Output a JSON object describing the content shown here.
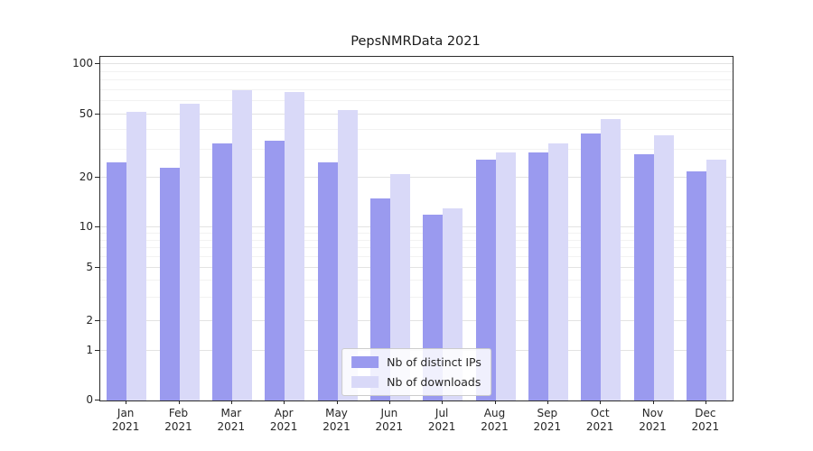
{
  "chart_data": {
    "type": "bar",
    "title": "PepsNMRData 2021",
    "categories": [
      "Jan 2021",
      "Feb 2021",
      "Mar 2021",
      "Apr 2021",
      "May 2021",
      "Jun 2021",
      "Jul 2021",
      "Aug 2021",
      "Sep 2021",
      "Oct 2021",
      "Nov 2021",
      "Dec 2021"
    ],
    "series": [
      {
        "name": "Nb of distinct IPs",
        "color": "#9a9aef",
        "values": [
          25,
          23,
          33,
          34,
          25,
          15,
          12,
          26,
          29,
          38,
          28,
          22
        ]
      },
      {
        "name": "Nb of downloads",
        "color": "#d9d9f8",
        "values": [
          52,
          58,
          70,
          68,
          53,
          21,
          13,
          29,
          33,
          47,
          37,
          26
        ]
      }
    ],
    "yticks": [
      0,
      1,
      2,
      5,
      10,
      20,
      50,
      100
    ],
    "ylim": [
      0,
      110
    ],
    "xlabel": "",
    "ylabel": "",
    "scale": "log-like",
    "grid": true,
    "legend_position": "lower center"
  }
}
